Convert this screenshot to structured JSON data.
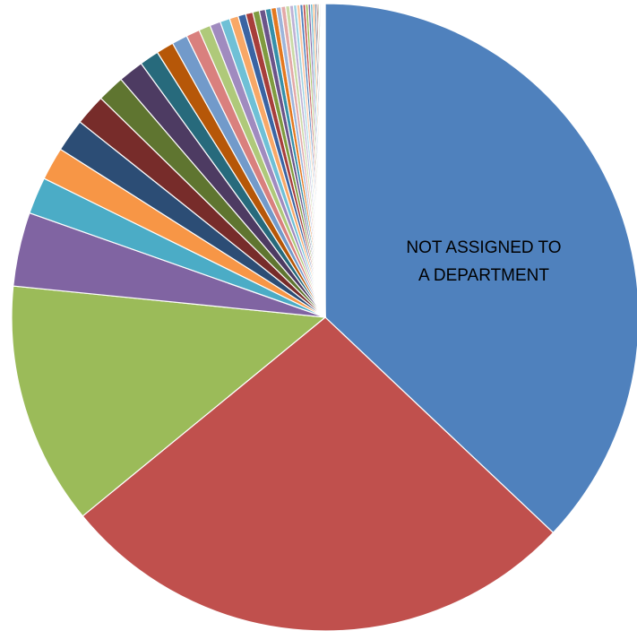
{
  "chart_data": {
    "type": "pie",
    "title": "",
    "start_angle_deg": 0,
    "direction": "clockwise",
    "slices": [
      {
        "value": 37.0,
        "color": "#4F81BD",
        "label": "NOT ASSIGNED TO A DEPARTMENT"
      },
      {
        "value": 27.0,
        "color": "#C0504D",
        "label": ""
      },
      {
        "value": 12.5,
        "color": "#9BBB59",
        "label": ""
      },
      {
        "value": 3.8,
        "color": "#8064A2",
        "label": ""
      },
      {
        "value": 1.9,
        "color": "#4BACC6",
        "label": ""
      },
      {
        "value": 1.7,
        "color": "#F79646",
        "label": ""
      },
      {
        "value": 1.7,
        "color": "#2C4D75",
        "label": ""
      },
      {
        "value": 1.6,
        "color": "#772C2A",
        "label": ""
      },
      {
        "value": 1.4,
        "color": "#5F7530",
        "label": ""
      },
      {
        "value": 1.3,
        "color": "#4D3B62",
        "label": ""
      },
      {
        "value": 1.0,
        "color": "#276A7C",
        "label": ""
      },
      {
        "value": 0.9,
        "color": "#B65708",
        "label": ""
      },
      {
        "value": 0.8,
        "color": "#729ACA",
        "label": ""
      },
      {
        "value": 0.7,
        "color": "#D9807E",
        "label": ""
      },
      {
        "value": 0.6,
        "color": "#AFC97A",
        "label": ""
      },
      {
        "value": 0.55,
        "color": "#A08BBF",
        "label": ""
      },
      {
        "value": 0.5,
        "color": "#6FC0D6",
        "label": ""
      },
      {
        "value": 0.45,
        "color": "#F8A867",
        "label": ""
      },
      {
        "value": 0.4,
        "color": "#3A64A3",
        "label": ""
      },
      {
        "value": 0.37,
        "color": "#A73E3B",
        "label": ""
      },
      {
        "value": 0.34,
        "color": "#7F9B3F",
        "label": ""
      },
      {
        "value": 0.31,
        "color": "#6B5489",
        "label": ""
      },
      {
        "value": 0.29,
        "color": "#3690A9",
        "label": ""
      },
      {
        "value": 0.27,
        "color": "#E4781F",
        "label": ""
      },
      {
        "value": 0.25,
        "color": "#9DB5DB",
        "label": ""
      },
      {
        "value": 0.23,
        "color": "#E3A9A8",
        "label": ""
      },
      {
        "value": 0.21,
        "color": "#C9DAA6",
        "label": ""
      },
      {
        "value": 0.19,
        "color": "#BEB1D5",
        "label": ""
      },
      {
        "value": 0.17,
        "color": "#9ED3E2",
        "label": ""
      },
      {
        "value": 0.16,
        "color": "#FAC6A1",
        "label": ""
      },
      {
        "value": 0.15,
        "color": "#4F81BD",
        "label": ""
      },
      {
        "value": 0.14,
        "color": "#C0504D",
        "label": ""
      },
      {
        "value": 0.13,
        "color": "#9BBB59",
        "label": ""
      },
      {
        "value": 0.12,
        "color": "#8064A2",
        "label": ""
      },
      {
        "value": 0.11,
        "color": "#4BACC6",
        "label": ""
      },
      {
        "value": 0.1,
        "color": "#F79646",
        "label": ""
      },
      {
        "value": 0.09,
        "color": "#2C4D75",
        "label": ""
      },
      {
        "value": 0.08,
        "color": "#772C2A",
        "label": ""
      },
      {
        "value": 0.07,
        "color": "#5F7530",
        "label": ""
      },
      {
        "value": 0.06,
        "color": "#4D3B62",
        "label": ""
      },
      {
        "value": 0.05,
        "color": "#276A7C",
        "label": ""
      },
      {
        "value": 0.05,
        "color": "#B65708",
        "label": ""
      },
      {
        "value": 0.04,
        "color": "#729ACA",
        "label": ""
      },
      {
        "value": 0.04,
        "color": "#D9807E",
        "label": ""
      },
      {
        "value": 0.03,
        "color": "#AFC97A",
        "label": ""
      },
      {
        "value": 0.03,
        "color": "#A08BBF",
        "label": ""
      }
    ]
  }
}
